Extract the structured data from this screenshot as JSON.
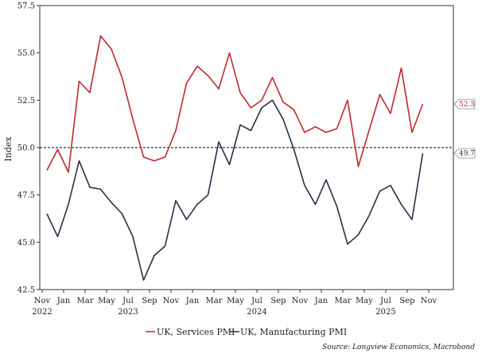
{
  "chart_data": {
    "type": "line",
    "title": "",
    "xlabel": "",
    "ylabel": "Index",
    "ylim": [
      42.5,
      57.5
    ],
    "yticks": [
      "42.5",
      "45.0",
      "47.5",
      "50.0",
      "52.5",
      "55.0",
      "57.5"
    ],
    "reference_line": 50.0,
    "x": [
      "Nov 2022",
      "Dec 2022",
      "Jan 2023",
      "Feb 2023",
      "Mar 2023",
      "Apr 2023",
      "May 2023",
      "Jun 2023",
      "Jul 2023",
      "Aug 2023",
      "Sep 2023",
      "Oct 2023",
      "Nov 2023",
      "Dec 2023",
      "Jan 2024",
      "Feb 2024",
      "Mar 2024",
      "Apr 2024",
      "May 2024",
      "Jun 2024",
      "Jul 2024",
      "Aug 2024",
      "Sep 2024",
      "Oct 2024",
      "Nov 2024",
      "Dec 2024",
      "Jan 2025",
      "Feb 2025",
      "Mar 2025",
      "Apr 2025",
      "May 2025",
      "Jun 2025",
      "Jul 2025",
      "Aug 2025",
      "Sep 2025",
      "Oct 2025"
    ],
    "xtick_labels": [
      "Nov",
      "Jan",
      "Mar",
      "May",
      "Jul",
      "Sep",
      "Nov",
      "Jan",
      "Mar",
      "May",
      "Jul",
      "Sep",
      "Nov",
      "Jan",
      "Mar",
      "May",
      "Jul",
      "Sep",
      "Nov"
    ],
    "year_labels": [
      {
        "label": "2022",
        "at": "Nov"
      },
      {
        "label": "2023",
        "at": "Jul"
      },
      {
        "label": "2024",
        "at": "Jul"
      },
      {
        "label": "2025",
        "at": "Jul"
      }
    ],
    "series": [
      {
        "name": "UK, Services PMI",
        "color": "#c0282d",
        "values": [
          48.8,
          49.9,
          48.7,
          53.5,
          52.9,
          55.9,
          55.2,
          53.7,
          51.5,
          49.5,
          49.3,
          49.5,
          50.9,
          53.4,
          54.3,
          53.8,
          53.1,
          55.0,
          52.9,
          52.1,
          52.5,
          53.7,
          52.4,
          52.0,
          50.8,
          51.1,
          50.8,
          51.0,
          52.5,
          49.0,
          50.9,
          52.8,
          51.8,
          54.2,
          50.8,
          52.3
        ],
        "end_label": "52.3"
      },
      {
        "name": "UK, Manufacturing PMI",
        "color": "#2b2d4a",
        "values": [
          46.5,
          45.3,
          47.0,
          49.3,
          47.9,
          47.8,
          47.1,
          46.5,
          45.3,
          43.0,
          44.3,
          44.8,
          47.2,
          46.2,
          47.0,
          47.5,
          50.3,
          49.1,
          51.2,
          50.9,
          52.1,
          52.5,
          51.5,
          49.9,
          48.0,
          47.0,
          48.3,
          46.9,
          44.9,
          45.4,
          46.4,
          47.7,
          48.0,
          47.0,
          46.2,
          49.7
        ],
        "end_label": "49.7"
      }
    ],
    "legend": [
      "UK, Services PMI",
      "UK, Manufacturing PMI"
    ],
    "legend_position": "bottom",
    "source": "Source: Longview Economics, Macrobond"
  }
}
